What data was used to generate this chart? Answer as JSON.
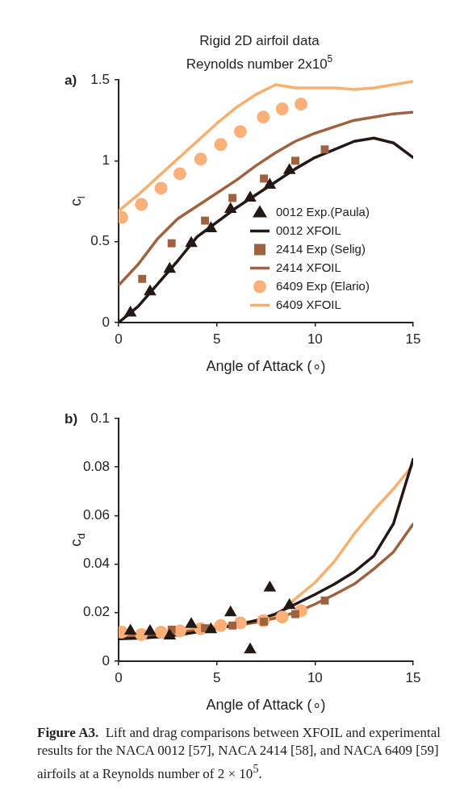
{
  "chart_data": [
    {
      "type": "line",
      "title": "Rigid 2D airfoil data",
      "subtitle": "Reynolds number 2x10$^{5}$",
      "xlabel": "Angle of Attack (∘)",
      "ylabel": "c$_{l}$",
      "annotations": [
        "a)"
      ],
      "xlim": [
        0,
        15
      ],
      "xticks": [
        0,
        5,
        10,
        15
      ],
      "ylim": [
        0,
        1.5
      ],
      "yticks": [
        0,
        0.5,
        1,
        1.5
      ],
      "grid": false,
      "legend": "bottom right",
      "series": [
        {
          "name": "0012 Exp.(Paula)",
          "type": "scatter",
          "marker": "triangle",
          "color": "#231815",
          "x": [
            0.6,
            1.6,
            2.6,
            3.7,
            4.7,
            5.7,
            6.7,
            7.7,
            8.7
          ],
          "values": [
            0.06,
            0.19,
            0.33,
            0.49,
            0.58,
            0.7,
            0.77,
            0.85,
            0.94
          ]
        },
        {
          "name": "0012 XFOIL",
          "type": "line",
          "marker": "none",
          "color": "#231815",
          "x": [
            0,
            1,
            2,
            3,
            4,
            5,
            6,
            7,
            8,
            9,
            10,
            11,
            12,
            13,
            14,
            15
          ],
          "values": [
            0,
            0.1,
            0.24,
            0.38,
            0.53,
            0.62,
            0.71,
            0.79,
            0.87,
            0.95,
            1.02,
            1.07,
            1.12,
            1.14,
            1.11,
            1.02
          ]
        },
        {
          "name": "2414 Exp (Selig)",
          "type": "scatter",
          "marker": "square",
          "color": "#9e6240",
          "x": [
            1.2,
            2.7,
            4.4,
            5.8,
            7.4,
            9,
            10.5
          ],
          "values": [
            0.27,
            0.49,
            0.63,
            0.77,
            0.89,
            1,
            1.07
          ]
        },
        {
          "name": "2414 XFOIL",
          "type": "line",
          "marker": "none",
          "color": "#9e6240",
          "x": [
            0,
            1,
            2,
            3,
            4,
            5,
            6,
            7,
            8,
            9,
            10,
            11,
            12,
            13,
            14,
            15
          ],
          "values": [
            0.23,
            0.36,
            0.52,
            0.64,
            0.72,
            0.8,
            0.88,
            0.97,
            1.05,
            1.12,
            1.17,
            1.21,
            1.25,
            1.27,
            1.29,
            1.3
          ]
        },
        {
          "name": "6409 Exp (Elario)",
          "type": "scatter",
          "marker": "circle",
          "color": "#fbb07a",
          "x": [
            0.16,
            1.16,
            2.16,
            3.12,
            4.18,
            5.2,
            6.2,
            7.37,
            8.33,
            9.29
          ],
          "values": [
            0.65,
            0.73,
            0.83,
            0.92,
            1.01,
            1.1,
            1.18,
            1.27,
            1.32,
            1.35
          ]
        },
        {
          "name": "6409 XFOIL",
          "type": "line",
          "marker": "none",
          "color": "#f9b06e",
          "x": [
            0,
            1,
            2,
            3,
            4,
            5,
            6,
            7,
            8,
            9,
            10,
            11,
            12,
            13,
            14,
            15
          ],
          "values": [
            0.69,
            0.79,
            0.9,
            1.01,
            1.12,
            1.23,
            1.33,
            1.41,
            1.47,
            1.45,
            1.45,
            1.45,
            1.44,
            1.45,
            1.47,
            1.49
          ]
        }
      ]
    },
    {
      "type": "line",
      "xlabel": "Angle of Attack (∘)",
      "ylabel": "c$_{d}$",
      "annotations": [
        "b)",
        "Figure A3.",
        "Lift and drag comparisons between XFOIL and experimental results for the NACA 0012 [57], NACA 2414 [58], and NACA 6409 [59] airfoils at a Reynolds number of 2 × 10$^{5}$."
      ],
      "xlim": [
        0,
        15
      ],
      "xticks": [
        0,
        5,
        10,
        15
      ],
      "ylim": [
        0,
        0.1
      ],
      "yticks": [
        0,
        0.02,
        0.04,
        0.06,
        0.08,
        0.1
      ],
      "grid": false,
      "series": [
        {
          "type": "scatter",
          "marker": "triangle",
          "color": "#231815",
          "x": [
            0.6,
            1.6,
            2.6,
            3.7,
            4.7,
            5.7,
            6.7,
            7.7,
            8.7
          ],
          "values": [
            0.0125,
            0.0123,
            0.0105,
            0.0152,
            0.013,
            0.02,
            0.0047,
            0.0302,
            0.023
          ]
        },
        {
          "type": "line",
          "marker": "none",
          "color": "#231815",
          "x": [
            0,
            1,
            2,
            3,
            4,
            5,
            6,
            7,
            8,
            9,
            10,
            11,
            12,
            13,
            14,
            15
          ],
          "values": [
            0.0092,
            0.0095,
            0.01,
            0.0108,
            0.012,
            0.0135,
            0.015,
            0.0168,
            0.0195,
            0.0235,
            0.0275,
            0.0318,
            0.0368,
            0.0434,
            0.0567,
            0.0832
          ]
        },
        {
          "type": "scatter",
          "marker": "square",
          "color": "#9e6240",
          "x": [
            2.7,
            4.4,
            5.8,
            7.4,
            9,
            10.5
          ],
          "values": [
            0.013,
            0.0136,
            0.0147,
            0.0163,
            0.0194,
            0.025
          ]
        },
        {
          "type": "line",
          "marker": "none",
          "color": "#9e6240",
          "x": [
            0,
            1,
            2,
            3,
            4,
            5,
            6,
            7,
            8,
            9,
            10,
            11,
            12,
            13,
            14,
            15
          ],
          "values": [
            0.01,
            0.0105,
            0.011,
            0.0118,
            0.0127,
            0.0137,
            0.0148,
            0.016,
            0.0178,
            0.02,
            0.0235,
            0.0275,
            0.0318,
            0.038,
            0.045,
            0.0565
          ]
        },
        {
          "type": "scatter",
          "marker": "circle",
          "color": "#fbb07a",
          "x": [
            0.16,
            1.16,
            2.16,
            3.12,
            4.18,
            5.2,
            6.2,
            7.37,
            8.33,
            9.29
          ],
          "values": [
            0.012,
            0.011,
            0.012,
            0.0125,
            0.0134,
            0.0147,
            0.0158,
            0.0167,
            0.0182,
            0.0208
          ]
        },
        {
          "type": "line",
          "marker": "none",
          "color": "#f9b06e",
          "x": [
            0,
            1,
            2,
            3,
            4,
            5,
            6,
            7,
            8,
            9,
            10,
            11,
            12,
            13,
            14,
            15
          ],
          "values": [
            0.0115,
            0.0112,
            0.0118,
            0.0125,
            0.0133,
            0.0145,
            0.0155,
            0.0165,
            0.0185,
            0.0257,
            0.0324,
            0.0412,
            0.0525,
            0.0622,
            0.071,
            0.081
          ]
        }
      ]
    }
  ]
}
